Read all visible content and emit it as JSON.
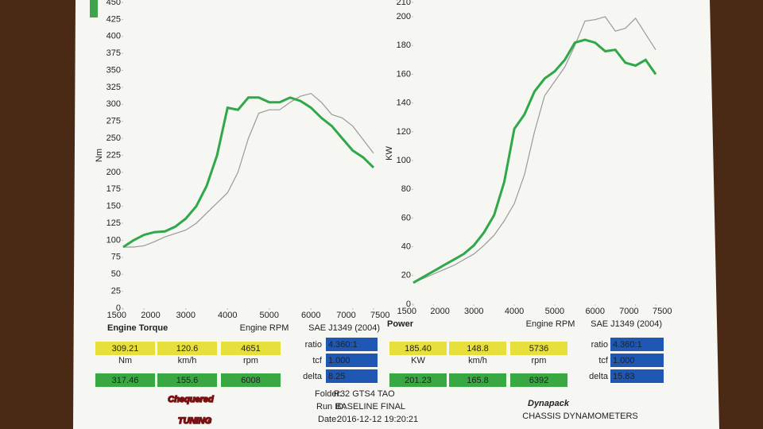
{
  "chart_data": [
    {
      "type": "line",
      "title": "Engine Torque",
      "x_label": "Engine RPM",
      "y_label": "Nm",
      "standard": "SAE J1349 (2004)",
      "xlim": [
        1500,
        7500
      ],
      "xticks": [
        1500,
        2000,
        3000,
        4000,
        5000,
        6000,
        7000,
        7500
      ],
      "ylim": [
        0,
        450
      ],
      "yticks": [
        0,
        25,
        50,
        75,
        100,
        125,
        150,
        175,
        200,
        225,
        250,
        275,
        300,
        325,
        350,
        375,
        400,
        425,
        450
      ],
      "grid": false,
      "x": [
        1500,
        1750,
        2000,
        2250,
        2500,
        2750,
        3000,
        3250,
        3500,
        3750,
        4000,
        4250,
        4500,
        4750,
        5000,
        5250,
        5500,
        5750,
        6000,
        6250,
        6500,
        6750,
        7000,
        7250,
        7500
      ],
      "series": [
        {
          "color": "#2fa84a",
          "values": [
            90,
            100,
            108,
            112,
            113,
            120,
            132,
            150,
            180,
            225,
            295,
            292,
            310,
            310,
            303,
            303,
            310,
            305,
            295,
            280,
            268,
            250,
            232,
            222,
            207
          ]
        },
        {
          "color": "#9a9a9a",
          "values": [
            90,
            90,
            92,
            98,
            105,
            110,
            115,
            125,
            140,
            155,
            170,
            200,
            250,
            287,
            292,
            292,
            303,
            312,
            316,
            303,
            285,
            280,
            268,
            248,
            228
          ]
        }
      ]
    },
    {
      "type": "line",
      "title": "Power",
      "x_label": "Engine RPM",
      "y_label": "KW",
      "standard": "SAE J1349 (2004)",
      "xlim": [
        1500,
        7500
      ],
      "xticks": [
        1500,
        2000,
        3000,
        4000,
        5000,
        6000,
        7000,
        7500
      ],
      "ylim": [
        0,
        210
      ],
      "yticks": [
        0,
        20,
        40,
        60,
        80,
        100,
        120,
        140,
        160,
        180,
        200,
        210
      ],
      "grid": false,
      "x": [
        1500,
        1750,
        2000,
        2250,
        2500,
        2750,
        3000,
        3250,
        3500,
        3750,
        4000,
        4250,
        4500,
        4750,
        5000,
        5250,
        5500,
        5750,
        6000,
        6250,
        6500,
        6750,
        7000,
        7250,
        7500
      ],
      "series": [
        {
          "color": "#2fa84a",
          "values": [
            15,
            19,
            23,
            27,
            31,
            35,
            41,
            50,
            62,
            85,
            122,
            132,
            148,
            157,
            162,
            170,
            182,
            184,
            182,
            176,
            177,
            168,
            166,
            170,
            160
          ]
        },
        {
          "color": "#9a9a9a",
          "values": [
            15,
            18,
            21,
            24,
            27,
            31,
            35,
            41,
            48,
            58,
            70,
            90,
            120,
            145,
            155,
            165,
            180,
            197,
            198,
            200,
            190,
            192,
            199,
            188,
            177
          ]
        }
      ]
    }
  ],
  "readouts": [
    {
      "top": [
        "309.21",
        "120.6",
        "4651"
      ],
      "units": [
        "Nm",
        "km/h",
        "rpm"
      ],
      "bottom": [
        "317.46",
        "155.6",
        "6008"
      ],
      "params": [
        [
          "ratio",
          "4.360:1"
        ],
        [
          "tcf",
          "1.000"
        ],
        [
          "delta",
          "8.25"
        ]
      ]
    },
    {
      "top": [
        "185.40",
        "148.8",
        "5736"
      ],
      "units": [
        "KW",
        "km/h",
        "rpm"
      ],
      "bottom": [
        "201.23",
        "165.8",
        "6392"
      ],
      "params": [
        [
          "ratio",
          "4.360:1"
        ],
        [
          "tcf",
          "1.000"
        ],
        [
          "delta",
          "15.83"
        ]
      ]
    }
  ],
  "run_info": [
    [
      "Folder:",
      "R32 GTS4 TAO"
    ],
    [
      "Run ID:",
      "BASELINE FINAL"
    ],
    [
      "Date:",
      "2016-12-12 19:20:21"
    ]
  ],
  "logos": {
    "left": [
      "Chequered",
      "TUNING"
    ],
    "right": "Dynapack",
    "right_sub": "CHASSIS DYNAMOMETERS"
  }
}
